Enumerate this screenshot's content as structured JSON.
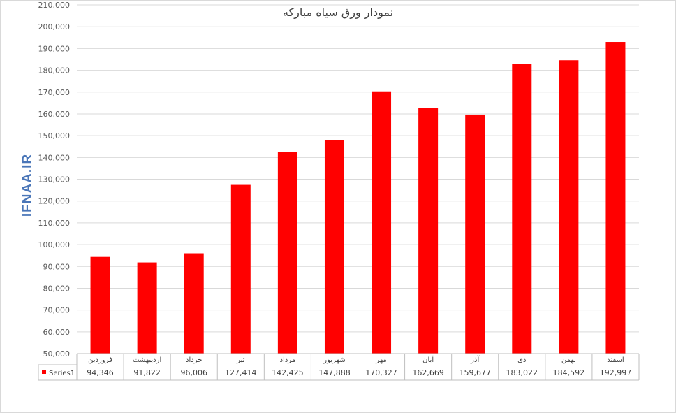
{
  "chart_data": {
    "type": "bar",
    "title": "نمودار ورق سیاه مبارکه",
    "categories": [
      "فروردین",
      "اردیبهشت",
      "خرداد",
      "تیر",
      "مرداد",
      "شهریور",
      "مهر",
      "آبان",
      "آذر",
      "دی",
      "بهمن",
      "اسفند"
    ],
    "series": [
      {
        "name": "Series1",
        "color": "#ff0000",
        "values": [
          94346,
          91822,
          96006,
          127414,
          142425,
          147888,
          170327,
          162669,
          159677,
          183022,
          184592,
          192997
        ],
        "value_labels": [
          "94,346",
          "91,822",
          "96,006",
          "127,414",
          "142,425",
          "147,888",
          "170,327",
          "162,669",
          "159,677",
          "183,022",
          "184,592",
          "192,997"
        ]
      }
    ],
    "ylim": [
      50000,
      210000
    ],
    "yticks": [
      50000,
      60000,
      70000,
      80000,
      90000,
      100000,
      110000,
      120000,
      130000,
      140000,
      150000,
      160000,
      170000,
      180000,
      190000,
      200000,
      210000
    ],
    "ytick_labels": [
      "50,000",
      "60,000",
      "70,000",
      "80,000",
      "90,000",
      "100,000",
      "110,000",
      "120,000",
      "130,000",
      "140,000",
      "150,000",
      "160,000",
      "170,000",
      "180,000",
      "190,000",
      "200,000",
      "210,000"
    ],
    "grid": true,
    "data_table": true,
    "watermark": "IFNAA.IR"
  }
}
